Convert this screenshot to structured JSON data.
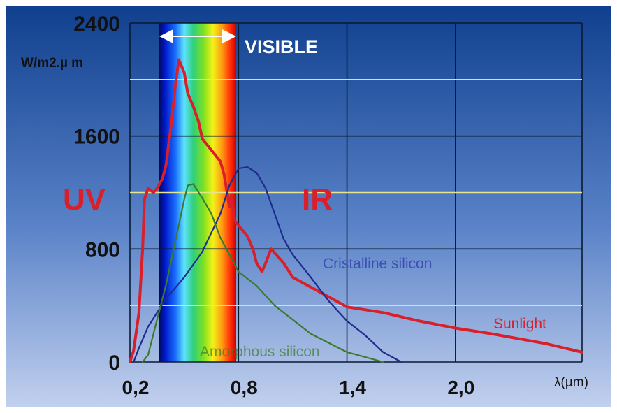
{
  "chart_data": {
    "type": "line",
    "ylabel": "W/m2.µ m",
    "xlabel": "λ(µm)",
    "x_ticks": [
      "0,2",
      "0,8",
      "1,4",
      "2,0"
    ],
    "y_ticks": [
      "2400",
      "1600",
      "800",
      "0"
    ],
    "xlim": [
      0.2,
      2.7
    ],
    "ylim": [
      0,
      2400
    ],
    "grid": true,
    "annotations": {
      "visible_band": {
        "label": "VISIBLE",
        "x_range": [
          0.38,
          0.75
        ]
      },
      "uv_label": "UV",
      "ir_label": "IR"
    },
    "series": [
      {
        "name": "Sunlight",
        "color": "#d81f2a",
        "points": [
          [
            0.2,
            0
          ],
          [
            0.22,
            80
          ],
          [
            0.25,
            350
          ],
          [
            0.27,
            800
          ],
          [
            0.28,
            1150
          ],
          [
            0.3,
            1230
          ],
          [
            0.33,
            1200
          ],
          [
            0.35,
            1230
          ],
          [
            0.38,
            1300
          ],
          [
            0.4,
            1400
          ],
          [
            0.43,
            1700
          ],
          [
            0.45,
            1950
          ],
          [
            0.47,
            2140
          ],
          [
            0.5,
            2050
          ],
          [
            0.52,
            1900
          ],
          [
            0.55,
            1810
          ],
          [
            0.58,
            1700
          ],
          [
            0.6,
            1580
          ],
          [
            0.65,
            1500
          ],
          [
            0.7,
            1420
          ],
          [
            0.72,
            1330
          ],
          [
            0.74,
            1180
          ],
          [
            0.75,
            1100
          ],
          [
            0.76,
            1180
          ],
          [
            0.78,
            1000
          ],
          [
            0.85,
            890
          ],
          [
            0.88,
            800
          ],
          [
            0.9,
            700
          ],
          [
            0.93,
            640
          ],
          [
            0.95,
            700
          ],
          [
            0.98,
            800
          ],
          [
            1.05,
            700
          ],
          [
            1.1,
            600
          ],
          [
            1.3,
            460
          ],
          [
            1.4,
            390
          ],
          [
            1.6,
            350
          ],
          [
            1.8,
            290
          ],
          [
            2.0,
            240
          ],
          [
            2.2,
            200
          ],
          [
            2.5,
            130
          ],
          [
            2.7,
            70
          ]
        ]
      },
      {
        "name": "Cristalline silicon",
        "color": "#1f2b8e",
        "points": [
          [
            0.22,
            0
          ],
          [
            0.25,
            100
          ],
          [
            0.3,
            250
          ],
          [
            0.4,
            450
          ],
          [
            0.5,
            600
          ],
          [
            0.6,
            780
          ],
          [
            0.7,
            1050
          ],
          [
            0.75,
            1250
          ],
          [
            0.8,
            1370
          ],
          [
            0.85,
            1380
          ],
          [
            0.9,
            1340
          ],
          [
            0.95,
            1230
          ],
          [
            1.0,
            1050
          ],
          [
            1.05,
            870
          ],
          [
            1.1,
            760
          ],
          [
            1.2,
            600
          ],
          [
            1.3,
            430
          ],
          [
            1.4,
            290
          ],
          [
            1.5,
            190
          ],
          [
            1.6,
            70
          ],
          [
            1.7,
            0
          ]
        ]
      },
      {
        "name": "Amorphous silicon",
        "color": "#3c7a2e",
        "points": [
          [
            0.27,
            0
          ],
          [
            0.3,
            50
          ],
          [
            0.35,
            300
          ],
          [
            0.4,
            550
          ],
          [
            0.45,
            850
          ],
          [
            0.5,
            1150
          ],
          [
            0.52,
            1250
          ],
          [
            0.55,
            1260
          ],
          [
            0.6,
            1160
          ],
          [
            0.65,
            1050
          ],
          [
            0.7,
            880
          ],
          [
            0.75,
            760
          ],
          [
            0.8,
            640
          ],
          [
            0.9,
            540
          ],
          [
            1.0,
            400
          ],
          [
            1.2,
            200
          ],
          [
            1.4,
            70
          ],
          [
            1.6,
            0
          ]
        ]
      }
    ],
    "series_labels": {
      "Sunlight": "Sunlight",
      "Cristalline silicon": "Cristalline silicon",
      "Amorphous silicon": "Amorphous silicon"
    }
  },
  "colors": {
    "background_top": "#0f3f8e",
    "background_bottom": "#b8c8e8",
    "grid": "#0a1a33",
    "horizontal_guides": "#e7e48a",
    "uv_label": "#d81f2a",
    "ir_label": "#d81f2a",
    "visible_label": "#ffffff"
  }
}
